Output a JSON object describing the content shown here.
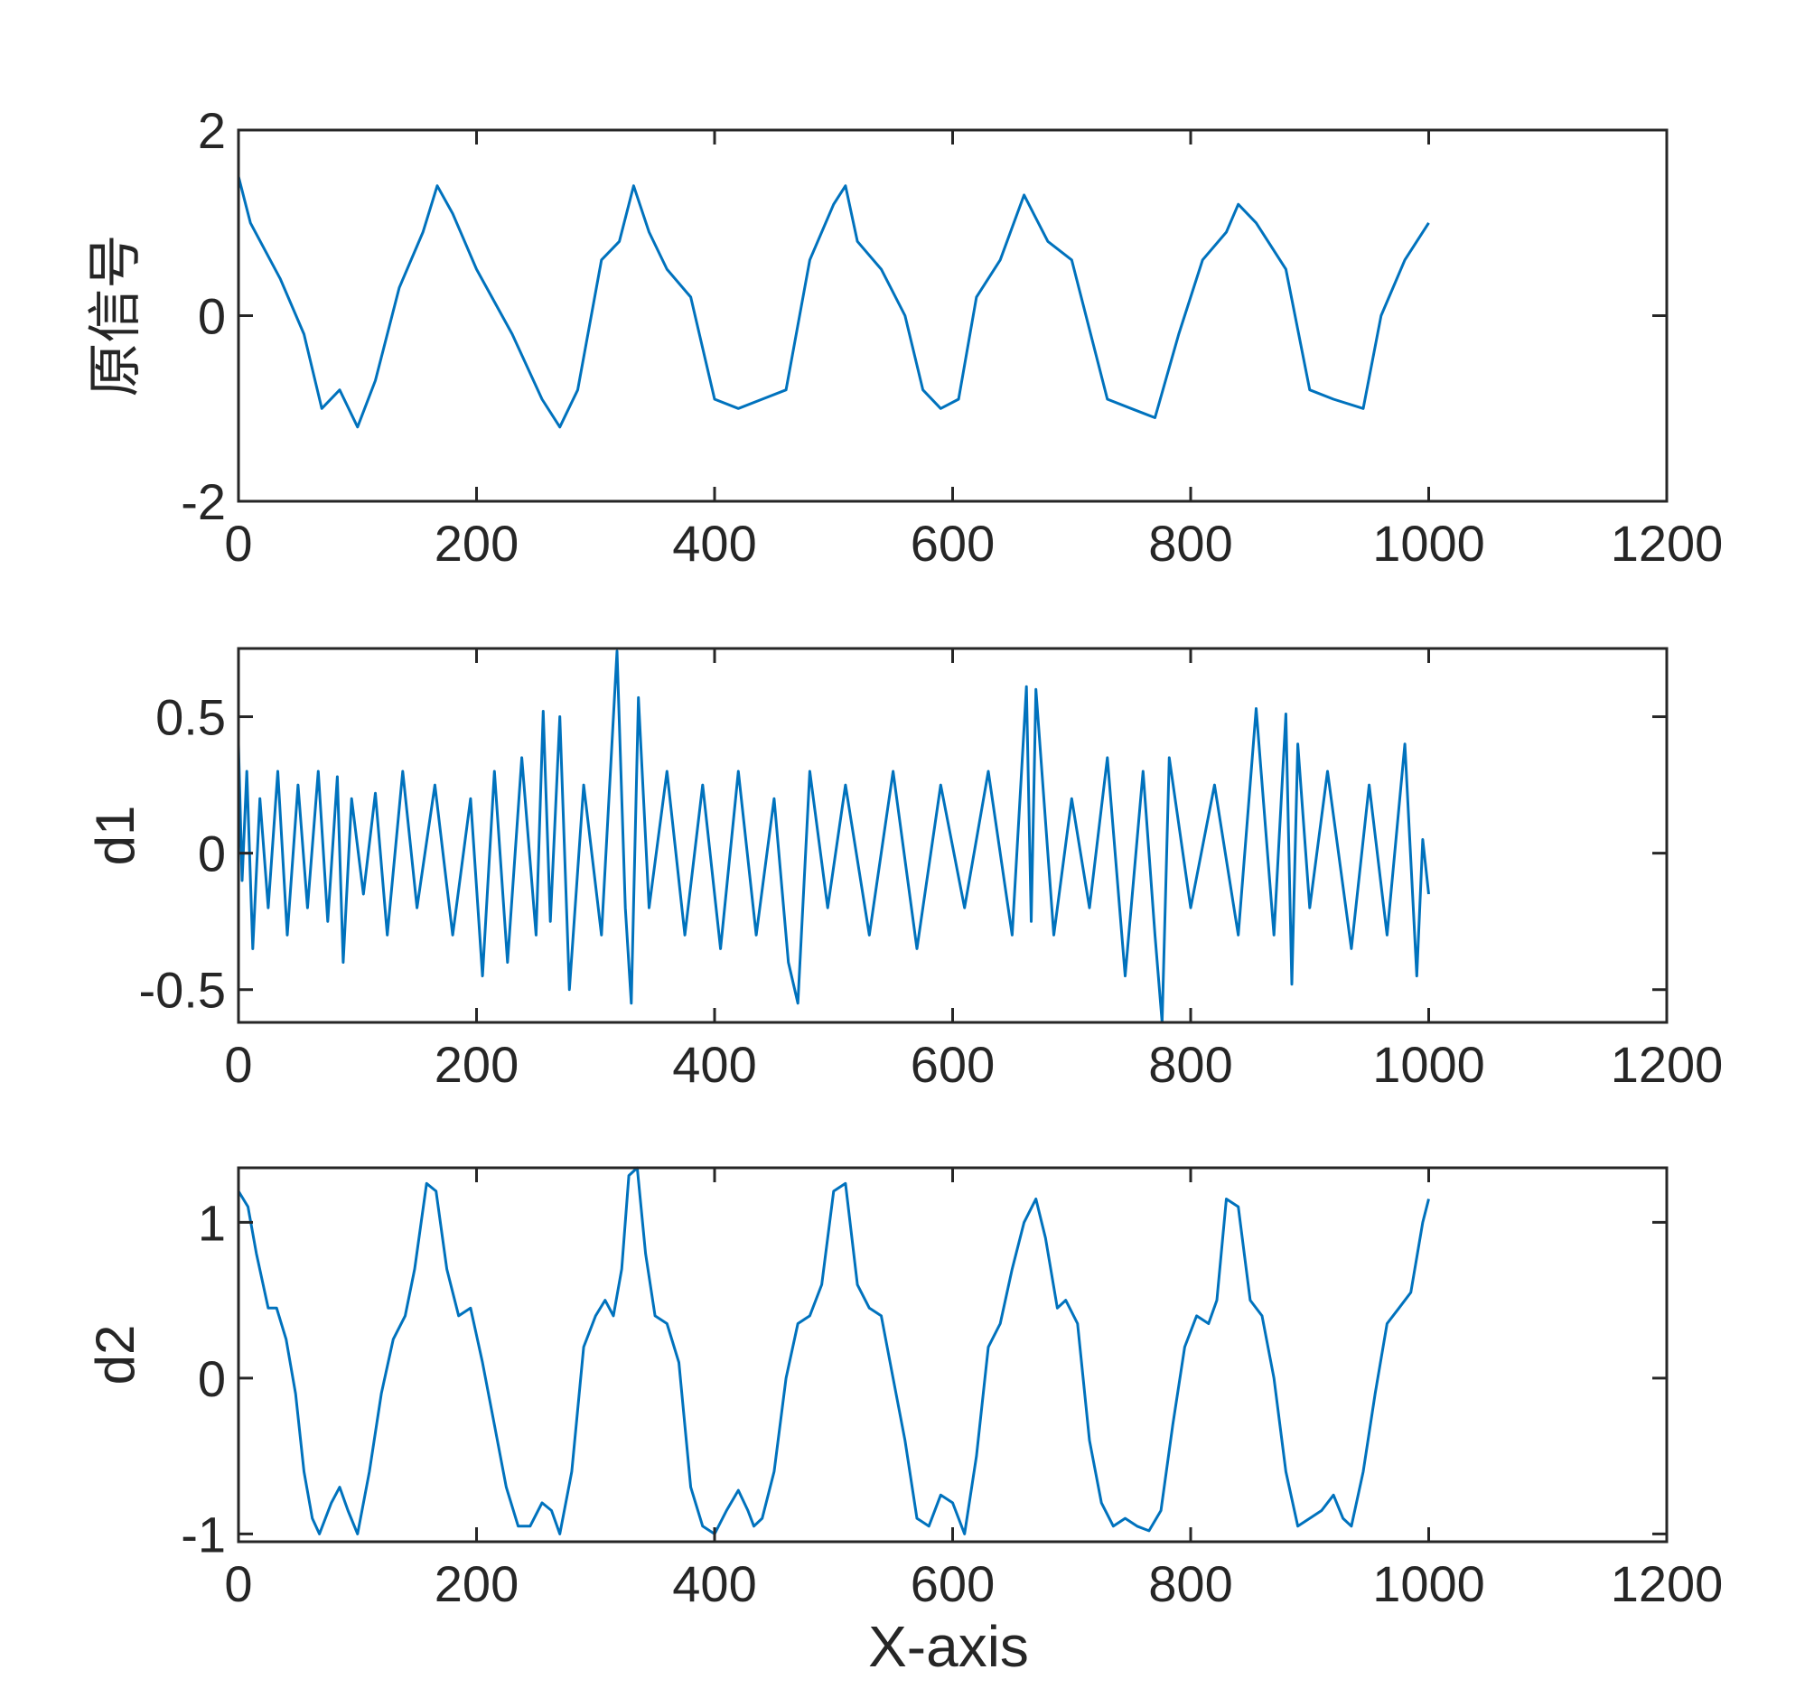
{
  "figure": {
    "xlabel": "X-axis",
    "colors": {
      "line": "#0072BD",
      "axes": "#262626",
      "background": "#ffffff"
    }
  },
  "chart_data": [
    {
      "type": "line",
      "ylabel": "原信号",
      "xlim": [
        0,
        1200
      ],
      "ylim": [
        -2,
        2
      ],
      "xticks": [
        "0",
        "200",
        "400",
        "600",
        "800",
        "1000",
        "1200"
      ],
      "yticks": [
        "-2",
        "0",
        "2"
      ],
      "grid": false,
      "series": [
        {
          "x": [
            0,
            10,
            35,
            55,
            70,
            85,
            100,
            115,
            135,
            155,
            167,
            180,
            200,
            230,
            255,
            270,
            285,
            305,
            320,
            332,
            345,
            360,
            380,
            400,
            420,
            440,
            460,
            480,
            500,
            510,
            520,
            540,
            560,
            575,
            590,
            605,
            620,
            640,
            660,
            668,
            680,
            700,
            730,
            750,
            770,
            790,
            810,
            830,
            840,
            855,
            880,
            900,
            920,
            945,
            960,
            980,
            1000
          ],
          "values": [
            1.5,
            1.0,
            0.4,
            -0.2,
            -1.0,
            -0.8,
            -1.2,
            -0.7,
            0.3,
            0.9,
            1.4,
            1.1,
            0.5,
            -0.2,
            -0.9,
            -1.2,
            -0.8,
            0.6,
            0.8,
            1.4,
            0.9,
            0.5,
            0.2,
            -0.9,
            -1.0,
            -0.9,
            -0.8,
            0.6,
            1.2,
            1.4,
            0.8,
            0.5,
            0.0,
            -0.8,
            -1.0,
            -0.9,
            0.2,
            0.6,
            1.3,
            1.1,
            0.8,
            0.6,
            -0.9,
            -1.0,
            -1.1,
            -0.2,
            0.6,
            0.9,
            1.2,
            1.0,
            0.5,
            -0.8,
            -0.9,
            -1.0,
            0.0,
            0.6,
            1.0
          ]
        }
      ]
    },
    {
      "type": "line",
      "ylabel": "d1",
      "xlim": [
        0,
        1200
      ],
      "ylim": [
        -0.62,
        0.75
      ],
      "xticks": [
        "0",
        "200",
        "400",
        "600",
        "800",
        "1000",
        "1200"
      ],
      "yticks": [
        "-0.5",
        "0",
        "0.5"
      ],
      "grid": false,
      "series": [
        {
          "x": [
            0,
            3,
            7,
            12,
            18,
            25,
            33,
            41,
            50,
            58,
            67,
            75,
            83,
            88,
            95,
            105,
            115,
            125,
            138,
            150,
            165,
            180,
            195,
            205,
            215,
            226,
            238,
            250,
            256,
            262,
            270,
            278,
            290,
            305,
            318,
            325,
            330,
            336,
            345,
            360,
            375,
            390,
            405,
            420,
            435,
            450,
            462,
            470,
            480,
            495,
            510,
            530,
            550,
            570,
            590,
            610,
            630,
            650,
            662,
            666,
            670,
            685,
            700,
            715,
            730,
            745,
            760,
            770,
            776,
            782,
            800,
            820,
            840,
            855,
            870,
            880,
            885,
            890,
            900,
            915,
            935,
            950,
            965,
            980,
            990,
            995,
            1000
          ],
          "values": [
            0.4,
            -0.1,
            0.3,
            -0.35,
            0.2,
            -0.2,
            0.3,
            -0.3,
            0.25,
            -0.2,
            0.3,
            -0.25,
            0.28,
            -0.4,
            0.2,
            -0.15,
            0.22,
            -0.3,
            0.3,
            -0.2,
            0.25,
            -0.3,
            0.2,
            -0.45,
            0.3,
            -0.4,
            0.35,
            -0.3,
            0.52,
            -0.25,
            0.5,
            -0.5,
            0.25,
            -0.3,
            0.74,
            -0.2,
            -0.55,
            0.57,
            -0.2,
            0.3,
            -0.3,
            0.25,
            -0.35,
            0.3,
            -0.3,
            0.2,
            -0.4,
            -0.55,
            0.3,
            -0.2,
            0.25,
            -0.3,
            0.3,
            -0.35,
            0.25,
            -0.2,
            0.3,
            -0.3,
            0.61,
            -0.25,
            0.6,
            -0.3,
            0.2,
            -0.2,
            0.35,
            -0.45,
            0.3,
            -0.3,
            -0.62,
            0.35,
            -0.2,
            0.25,
            -0.3,
            0.53,
            -0.3,
            0.51,
            -0.48,
            0.4,
            -0.2,
            0.3,
            -0.35,
            0.25,
            -0.3,
            0.4,
            -0.45,
            0.05,
            -0.15
          ]
        }
      ]
    },
    {
      "type": "line",
      "ylabel": "d2",
      "xlim": [
        0,
        1200
      ],
      "ylim": [
        -1.05,
        1.35
      ],
      "xticks": [
        "0",
        "200",
        "400",
        "600",
        "800",
        "1000",
        "1200"
      ],
      "yticks": [
        "-1",
        "0",
        "1"
      ],
      "grid": false,
      "series": [
        {
          "x": [
            0,
            8,
            15,
            25,
            32,
            40,
            48,
            55,
            62,
            68,
            78,
            85,
            92,
            100,
            110,
            120,
            130,
            140,
            148,
            158,
            166,
            175,
            185,
            195,
            205,
            215,
            225,
            235,
            245,
            255,
            263,
            270,
            280,
            290,
            300,
            308,
            315,
            322,
            328,
            335,
            342,
            350,
            360,
            370,
            380,
            390,
            400,
            410,
            420,
            428,
            433,
            440,
            450,
            460,
            470,
            480,
            490,
            500,
            510,
            520,
            530,
            540,
            550,
            560,
            570,
            580,
            590,
            600,
            610,
            620,
            630,
            640,
            650,
            660,
            670,
            678,
            688,
            695,
            705,
            715,
            725,
            735,
            745,
            755,
            765,
            775,
            785,
            795,
            805,
            815,
            822,
            830,
            840,
            850,
            860,
            870,
            880,
            890,
            900,
            910,
            920,
            928,
            935,
            945,
            955,
            965,
            975,
            985,
            995,
            1000
          ],
          "values": [
            1.2,
            1.1,
            0.8,
            0.45,
            0.45,
            0.25,
            -0.1,
            -0.6,
            -0.9,
            -1.0,
            -0.8,
            -0.7,
            -0.85,
            -1.0,
            -0.6,
            -0.1,
            0.25,
            0.4,
            0.7,
            1.25,
            1.2,
            0.7,
            0.4,
            0.45,
            0.1,
            -0.3,
            -0.7,
            -0.95,
            -0.95,
            -0.8,
            -0.85,
            -1.0,
            -0.6,
            0.2,
            0.4,
            0.5,
            0.4,
            0.7,
            1.3,
            1.35,
            0.8,
            0.4,
            0.35,
            0.1,
            -0.7,
            -0.95,
            -1.0,
            -0.85,
            -0.72,
            -0.85,
            -0.95,
            -0.9,
            -0.6,
            0.0,
            0.35,
            0.4,
            0.6,
            1.2,
            1.25,
            0.6,
            0.45,
            0.4,
            0.0,
            -0.4,
            -0.9,
            -0.95,
            -0.75,
            -0.8,
            -1.0,
            -0.5,
            0.2,
            0.35,
            0.7,
            1.0,
            1.15,
            0.9,
            0.45,
            0.5,
            0.35,
            -0.4,
            -0.8,
            -0.95,
            -0.9,
            -0.95,
            -0.98,
            -0.85,
            -0.3,
            0.2,
            0.4,
            0.35,
            0.5,
            1.15,
            1.1,
            0.5,
            0.4,
            0.0,
            -0.6,
            -0.95,
            -0.9,
            -0.85,
            -0.75,
            -0.9,
            -0.95,
            -0.6,
            -0.1,
            0.35,
            0.45,
            0.55,
            1.0,
            1.15
          ]
        }
      ]
    }
  ]
}
